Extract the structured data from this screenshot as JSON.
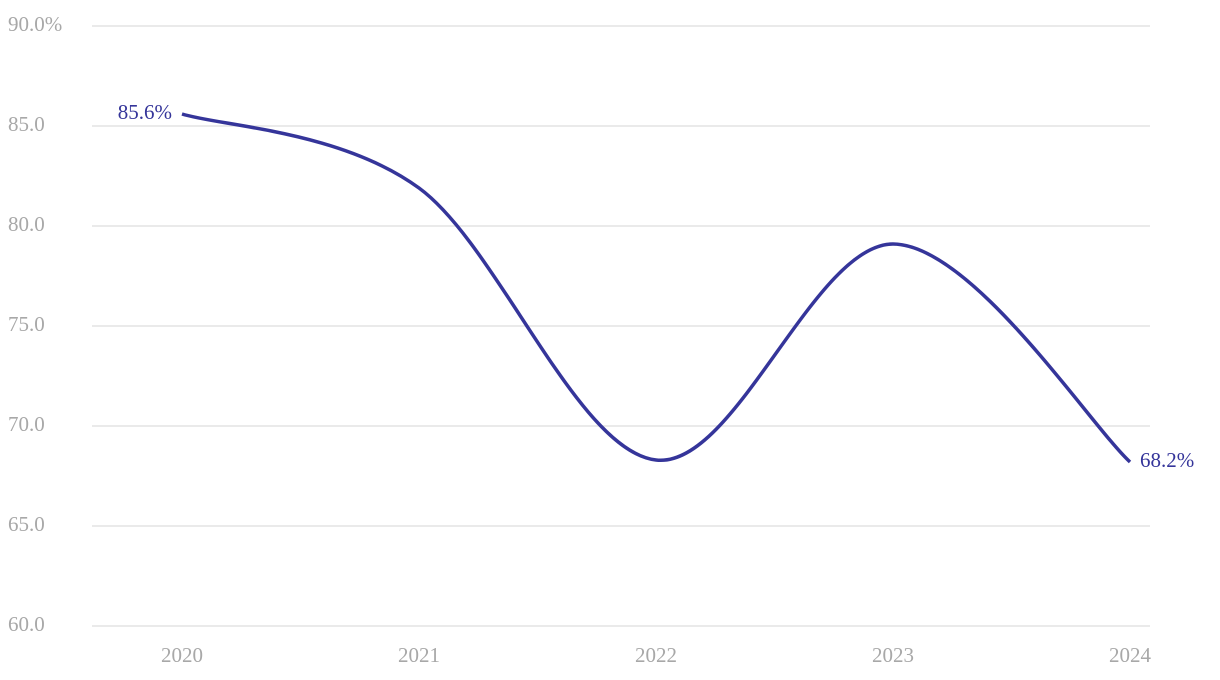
{
  "chart_data": {
    "type": "line",
    "categories": [
      "2020",
      "2021",
      "2022",
      "2023",
      "2024"
    ],
    "series": [
      {
        "color": "#35359a",
        "values": [
          85.6,
          81.9,
          68.3,
          79.1,
          68.2
        ],
        "value_labels": [
          "85.6%",
          null,
          null,
          null,
          "68.2%"
        ]
      }
    ],
    "ylim": [
      60,
      90
    ],
    "yticks": [
      {
        "value": 60,
        "label": "60.0"
      },
      {
        "value": 65,
        "label": "65.0"
      },
      {
        "value": 70,
        "label": "70.0"
      },
      {
        "value": 75,
        "label": "75.0"
      },
      {
        "value": 80,
        "label": "80.0"
      },
      {
        "value": 85,
        "label": "85.0"
      },
      {
        "value": 90,
        "label": "90.0%"
      }
    ],
    "grid": true,
    "smooth": true
  }
}
